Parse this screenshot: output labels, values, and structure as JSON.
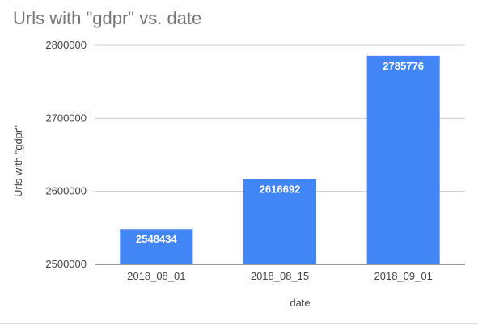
{
  "chart_data": {
    "type": "bar",
    "title": "Urls with \"gdpr\" vs. date",
    "xlabel": "date",
    "ylabel": "Urls with \"gdpr\"",
    "categories": [
      "2018_08_01",
      "2018_08_15",
      "2018_09_01"
    ],
    "values": [
      2548434,
      2616692,
      2785776
    ],
    "data_labels": [
      "2548434",
      "2616692",
      "2785776"
    ],
    "ylim": [
      2500000,
      2800000
    ],
    "yticks": [
      2500000,
      2600000,
      2700000,
      2800000
    ],
    "ytick_labels": [
      "2500000",
      "2600000",
      "2700000",
      "2800000"
    ],
    "grid": true,
    "legend": "none",
    "colors": {
      "bar": "#4285f4",
      "grid": "#cccccc",
      "axis": "#333333",
      "tick_text": "#444444",
      "title": "#757575",
      "label_text": "#ffffff"
    }
  }
}
